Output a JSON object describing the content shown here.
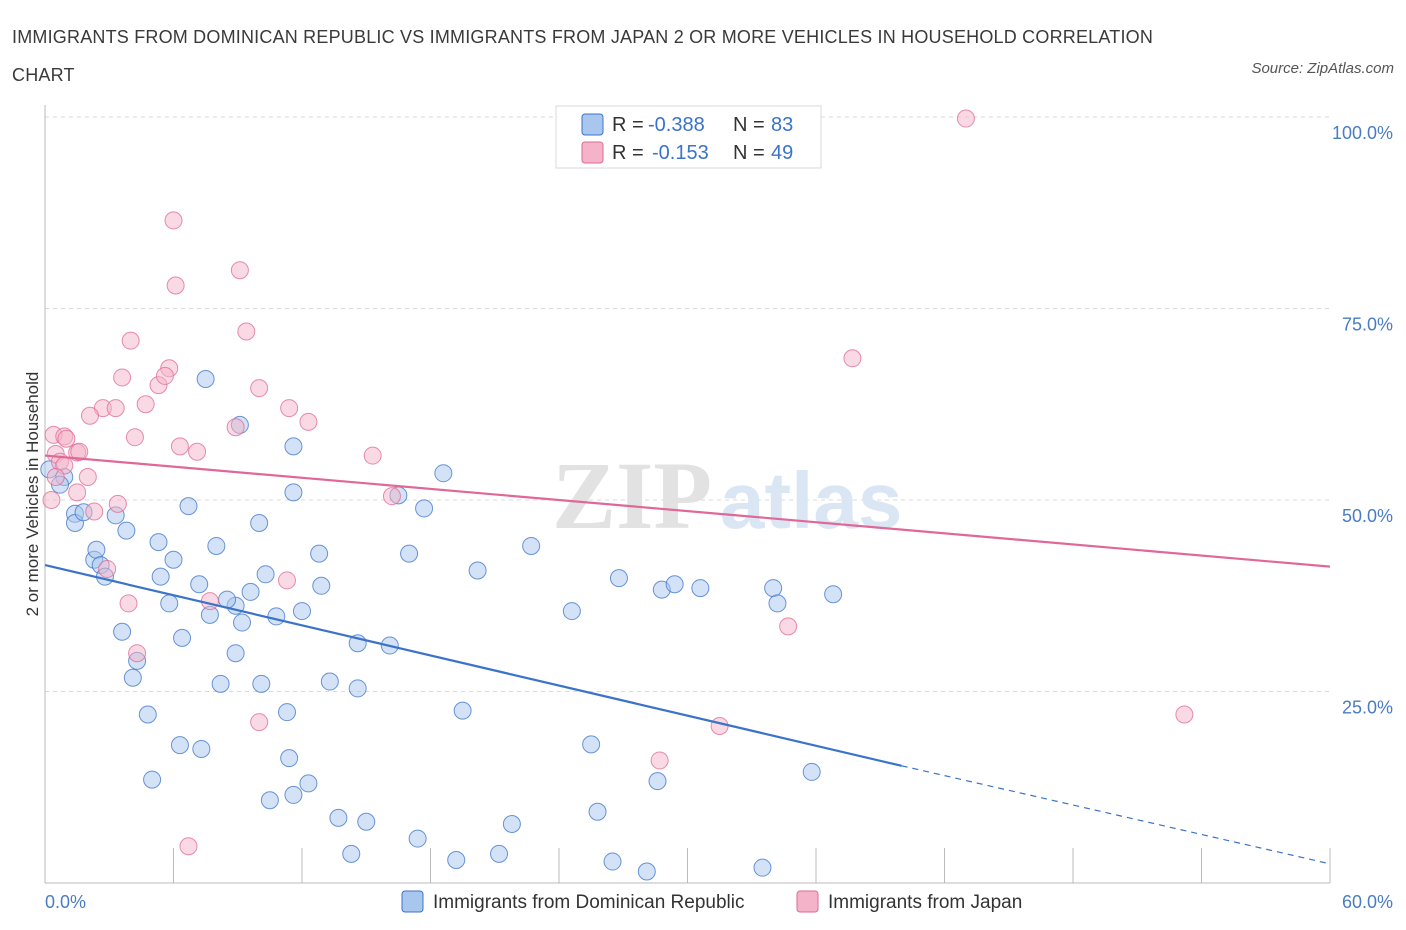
{
  "title": "IMMIGRANTS FROM DOMINICAN REPUBLIC VS IMMIGRANTS FROM JAPAN 2 OR MORE VEHICLES IN HOUSEHOLD CORRELATION CHART",
  "source": "Source: ZipAtlas.com",
  "watermark": {
    "zip": "ZIP",
    "atlas": "atlas"
  },
  "colors": {
    "blue": "#3b73c9",
    "blue_fill": "#a8c6ee",
    "pink": "#e06896",
    "pink_fill": "#f4b3c8",
    "grid": "#d9d9d9"
  },
  "legend": {
    "rows": [
      {
        "r_label": "R =",
        "r_value": "-0.388",
        "n_label": "N =",
        "n_value": "83"
      },
      {
        "r_label": "R =",
        "r_value": "-0.153",
        "n_label": "N =",
        "n_value": "49"
      }
    ]
  },
  "chart_data": {
    "type": "scatter",
    "ylabel": "2 or more Vehicles in Household",
    "xlim": [
      0,
      60
    ],
    "ylim": [
      0,
      100
    ],
    "x_tick_labels": [
      "0.0%",
      "60.0%"
    ],
    "y_ticks": [
      25,
      50,
      75,
      100
    ],
    "y_tick_labels": [
      "25.0%",
      "50.0%",
      "75.0%",
      "100.0%"
    ],
    "grid": "horizontal dashed",
    "legend_position": "top-center",
    "series": [
      {
        "name": "Immigrants from Dominican Republic",
        "color": "#3b73c9",
        "trend": {
          "x0": 0,
          "y0": 41.5,
          "x1": 40,
          "y1": 15.3,
          "dash_to_x": 60,
          "dash_to_y": 2.5
        },
        "points": [
          [
            0.2,
            54.0
          ],
          [
            0.9,
            53.0
          ],
          [
            0.7,
            52.0
          ],
          [
            1.4,
            48.2
          ],
          [
            3.3,
            48.0
          ],
          [
            1.4,
            47.0
          ],
          [
            6.7,
            49.2
          ],
          [
            10.0,
            47.0
          ],
          [
            11.6,
            51.0
          ],
          [
            16.5,
            50.6
          ],
          [
            17.7,
            48.9
          ],
          [
            18.6,
            53.5
          ],
          [
            22.7,
            44.0
          ],
          [
            17.0,
            43.0
          ],
          [
            12.8,
            43.0
          ],
          [
            8.0,
            44.0
          ],
          [
            5.3,
            44.5
          ],
          [
            3.8,
            46.0
          ],
          [
            2.3,
            42.2
          ],
          [
            2.4,
            43.5
          ],
          [
            2.6,
            41.5
          ],
          [
            2.8,
            40.0
          ],
          [
            5.4,
            40.0
          ],
          [
            6.0,
            42.2
          ],
          [
            7.2,
            39.0
          ],
          [
            10.3,
            40.3
          ],
          [
            12.9,
            38.8
          ],
          [
            20.2,
            40.8
          ],
          [
            26.8,
            39.8
          ],
          [
            28.8,
            38.3
          ],
          [
            29.4,
            39.0
          ],
          [
            30.6,
            38.5
          ],
          [
            34.0,
            38.5
          ],
          [
            34.2,
            36.5
          ],
          [
            36.8,
            37.7
          ],
          [
            24.6,
            35.5
          ],
          [
            12.0,
            35.5
          ],
          [
            8.9,
            36.2
          ],
          [
            7.7,
            35.0
          ],
          [
            5.8,
            36.5
          ],
          [
            9.2,
            34.0
          ],
          [
            9.6,
            38.0
          ],
          [
            3.6,
            32.8
          ],
          [
            6.4,
            32.0
          ],
          [
            14.6,
            31.3
          ],
          [
            16.1,
            31.0
          ],
          [
            4.3,
            29.0
          ],
          [
            8.9,
            30.0
          ],
          [
            4.1,
            26.8
          ],
          [
            8.2,
            26.0
          ],
          [
            10.1,
            26.0
          ],
          [
            13.3,
            26.3
          ],
          [
            14.6,
            25.4
          ],
          [
            4.8,
            22.0
          ],
          [
            11.3,
            22.3
          ],
          [
            19.5,
            22.5
          ],
          [
            6.3,
            18.0
          ],
          [
            7.3,
            17.5
          ],
          [
            11.4,
            16.3
          ],
          [
            25.5,
            18.1
          ],
          [
            5.0,
            13.5
          ],
          [
            12.3,
            13.0
          ],
          [
            11.6,
            11.5
          ],
          [
            10.5,
            10.8
          ],
          [
            25.8,
            9.3
          ],
          [
            28.6,
            13.3
          ],
          [
            35.8,
            14.5
          ],
          [
            13.7,
            8.5
          ],
          [
            15.0,
            8.0
          ],
          [
            17.4,
            5.8
          ],
          [
            21.8,
            7.7
          ],
          [
            14.3,
            3.8
          ],
          [
            19.2,
            3.0
          ],
          [
            21.2,
            3.8
          ],
          [
            26.5,
            2.8
          ],
          [
            28.1,
            1.5
          ],
          [
            33.5,
            2.0
          ],
          [
            7.5,
            65.8
          ],
          [
            9.1,
            59.8
          ],
          [
            11.6,
            57.0
          ],
          [
            1.8,
            48.4
          ],
          [
            8.5,
            37.0
          ],
          [
            10.8,
            34.8
          ]
        ]
      },
      {
        "name": "Immigrants from Japan",
        "color": "#e06896",
        "trend": {
          "x0": 0,
          "y0": 55.8,
          "x1": 60,
          "y1": 41.3
        },
        "points": [
          [
            43.0,
            99.8
          ],
          [
            6.0,
            86.5
          ],
          [
            6.1,
            78.0
          ],
          [
            9.1,
            80.0
          ],
          [
            9.4,
            72.0
          ],
          [
            4.0,
            70.8
          ],
          [
            37.7,
            68.5
          ],
          [
            5.8,
            67.2
          ],
          [
            3.6,
            66.0
          ],
          [
            5.3,
            65.0
          ],
          [
            5.6,
            66.2
          ],
          [
            10.0,
            64.6
          ],
          [
            2.7,
            62.0
          ],
          [
            3.3,
            62.0
          ],
          [
            4.7,
            62.5
          ],
          [
            11.4,
            62.0
          ],
          [
            2.1,
            61.0
          ],
          [
            12.3,
            60.2
          ],
          [
            8.9,
            59.5
          ],
          [
            0.4,
            58.5
          ],
          [
            0.9,
            58.3
          ],
          [
            1.0,
            58.0
          ],
          [
            4.2,
            58.2
          ],
          [
            6.3,
            57.0
          ],
          [
            7.1,
            56.3
          ],
          [
            0.5,
            56.0
          ],
          [
            1.5,
            56.2
          ],
          [
            1.6,
            56.3
          ],
          [
            15.3,
            55.8
          ],
          [
            0.7,
            55.0
          ],
          [
            0.9,
            54.5
          ],
          [
            0.5,
            53.0
          ],
          [
            2.0,
            53.0
          ],
          [
            1.5,
            51.0
          ],
          [
            16.2,
            50.5
          ],
          [
            3.4,
            49.5
          ],
          [
            2.3,
            48.5
          ],
          [
            0.3,
            50.0
          ],
          [
            2.9,
            41.0
          ],
          [
            11.3,
            39.5
          ],
          [
            3.9,
            36.5
          ],
          [
            7.7,
            36.8
          ],
          [
            34.7,
            33.5
          ],
          [
            4.3,
            30.0
          ],
          [
            10.0,
            21.0
          ],
          [
            31.5,
            20.5
          ],
          [
            53.2,
            22.0
          ],
          [
            28.7,
            16.0
          ],
          [
            6.7,
            4.8
          ]
        ]
      }
    ]
  },
  "bottom_legend": [
    "Immigrants from Dominican Republic",
    "Immigrants from Japan"
  ]
}
